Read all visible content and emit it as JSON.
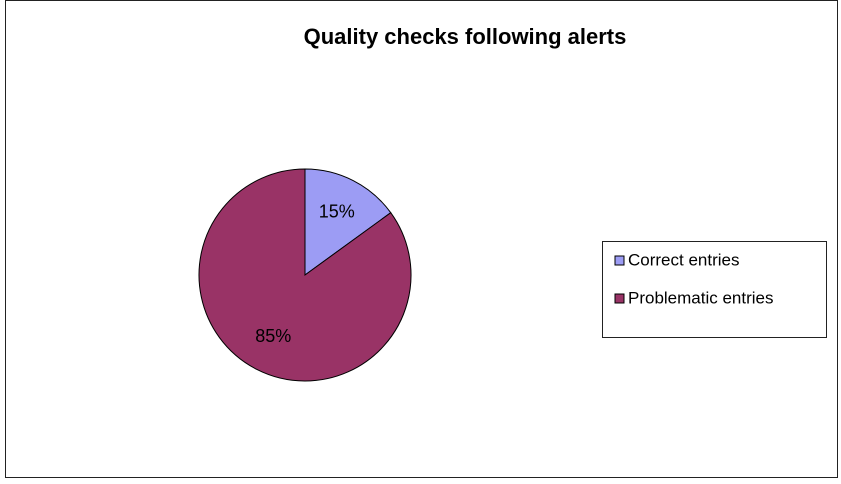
{
  "chart_data": {
    "type": "pie",
    "title": "Quality checks following alerts",
    "categories": [
      "Correct entries",
      "Problematic entries"
    ],
    "values": [
      15,
      85
    ],
    "value_labels": [
      "15%",
      "85%"
    ],
    "colors": [
      "#9c9cf4",
      "#993366"
    ],
    "legend": "right"
  }
}
